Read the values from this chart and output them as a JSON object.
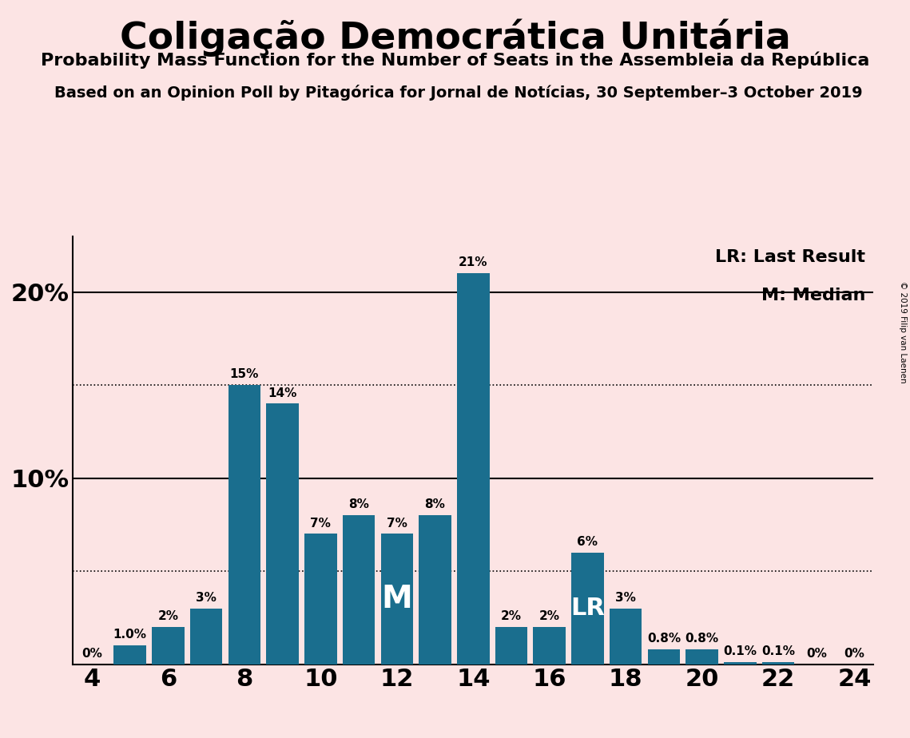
{
  "title": "Coligação Democrática Unitária",
  "subtitle": "Probability Mass Function for the Number of Seats in the Assembleia da República",
  "source": "Based on an Opinion Poll by Pitagórica for Jornal de Notícias, 30 September–3 October 2019",
  "copyright": "© 2019 Filip van Laenen",
  "legend_lr": "LR: Last Result",
  "legend_m": "M: Median",
  "seats": [
    4,
    5,
    6,
    7,
    8,
    9,
    10,
    11,
    12,
    13,
    14,
    15,
    16,
    17,
    18,
    19,
    20,
    21,
    22,
    23,
    24
  ],
  "values": [
    0.0,
    1.0,
    2.0,
    3.0,
    15.0,
    14.0,
    7.0,
    8.0,
    7.0,
    8.0,
    21.0,
    2.0,
    2.0,
    6.0,
    3.0,
    0.8,
    0.8,
    0.1,
    0.1,
    0.0,
    0.0
  ],
  "labels": [
    "0%",
    "1.0%",
    "2%",
    "3%",
    "15%",
    "14%",
    "7%",
    "8%",
    "7%",
    "8%",
    "21%",
    "2%",
    "2%",
    "6%",
    "3%",
    "0.8%",
    "0.8%",
    "0.1%",
    "0.1%",
    "0%",
    "0%"
  ],
  "bar_color": "#1a6e8e",
  "background_color": "#fce4e4",
  "text_color": "#1a1a1a",
  "median_seat": 12,
  "lr_seat": 17,
  "dotted_lines": [
    5.0,
    15.0
  ],
  "solid_lines": [
    10.0,
    20.0
  ],
  "ylim": [
    0,
    23
  ],
  "xlim": [
    3.5,
    24.5
  ],
  "xticks": [
    4,
    6,
    8,
    10,
    12,
    14,
    16,
    18,
    20,
    22,
    24
  ]
}
